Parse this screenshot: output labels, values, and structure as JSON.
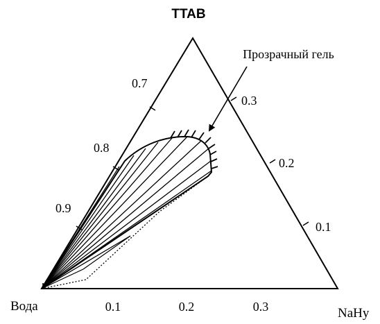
{
  "diagram": {
    "vertices": {
      "top": "TTAB",
      "left": "Вода",
      "right": "NaHy"
    },
    "annotation": "Прозрачный гель",
    "left_edge_ticks": [
      "0.7",
      "0.8",
      "0.9"
    ],
    "right_edge_ticks": [
      "0.3",
      "0.2",
      "0.1"
    ],
    "bottom_edge_ticks": [
      "0.1",
      "0.2",
      "0.3"
    ],
    "colors": {
      "ink": "#000000",
      "background": "#ffffff"
    }
  }
}
